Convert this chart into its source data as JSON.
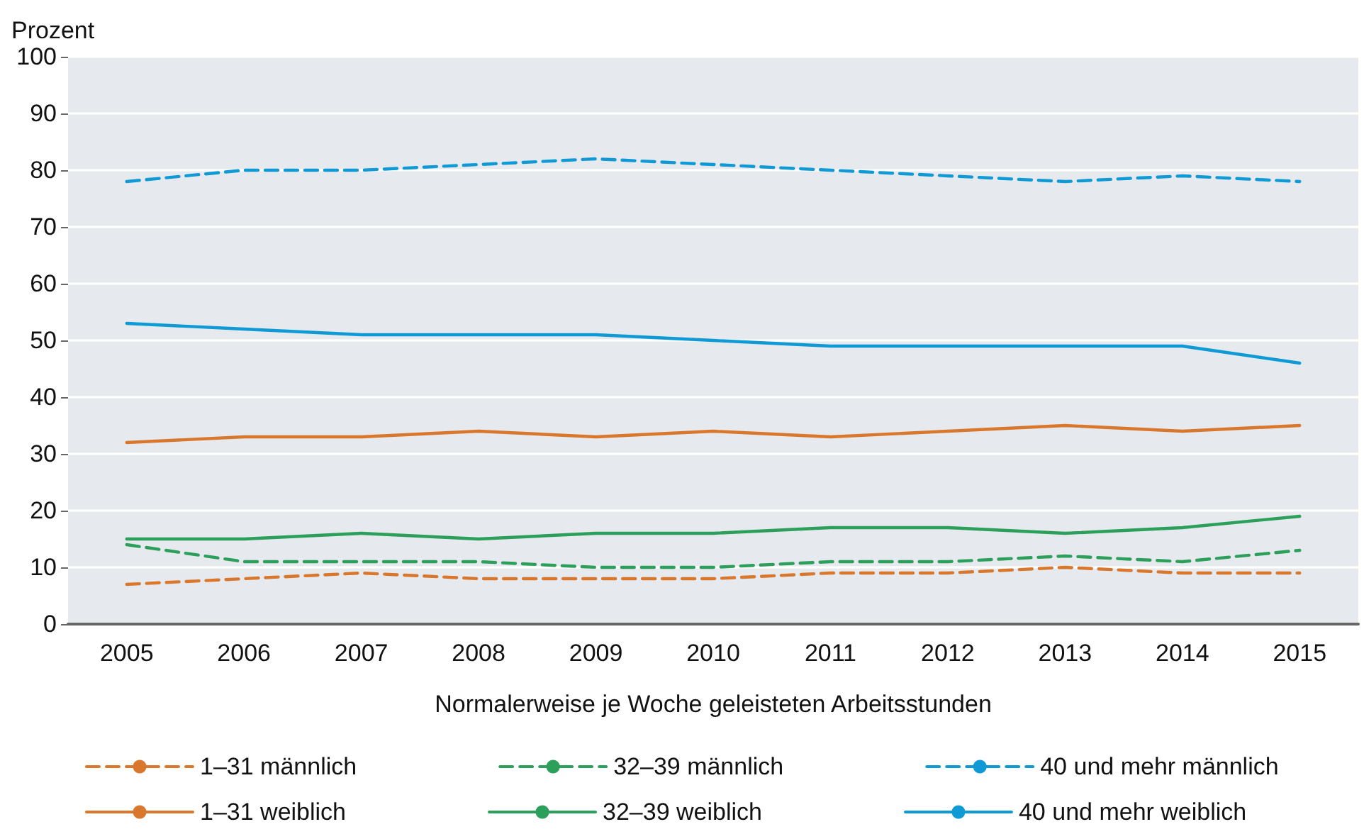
{
  "chart_data": {
    "type": "line",
    "xlabel": "Normalerweise je Woche geleisteten Arbeitsstunden",
    "ylabel": "Prozent",
    "categories": [
      "2005",
      "2006",
      "2007",
      "2008",
      "2009",
      "2010",
      "2011",
      "2012",
      "2013",
      "2014",
      "2015"
    ],
    "ylim": [
      0,
      100
    ],
    "yticks": [
      0,
      10,
      20,
      30,
      40,
      50,
      60,
      70,
      80,
      90,
      100
    ],
    "grid": "y",
    "legend": "bottom",
    "marker": "none",
    "series": [
      {
        "name": "1–31 männlich",
        "color": "#d9782d",
        "line_style": "dashed",
        "values": [
          7,
          8,
          9,
          8,
          8,
          8,
          9,
          9,
          10,
          9,
          9
        ]
      },
      {
        "name": "32–39 männlich",
        "color": "#2ca05a",
        "line_style": "dashed",
        "values": [
          14,
          11,
          11,
          11,
          10,
          10,
          11,
          11,
          12,
          11,
          13
        ]
      },
      {
        "name": "40 und mehr männlich",
        "color": "#0f9ad6",
        "line_style": "dashed",
        "values": [
          78,
          80,
          80,
          81,
          82,
          81,
          80,
          79,
          78,
          79,
          78
        ]
      },
      {
        "name": "1–31 weiblich",
        "color": "#d9782d",
        "line_style": "solid",
        "values": [
          32,
          33,
          33,
          34,
          33,
          34,
          33,
          34,
          35,
          34,
          35
        ]
      },
      {
        "name": "32–39 weiblich",
        "color": "#2ca05a",
        "line_style": "solid",
        "values": [
          15,
          15,
          16,
          15,
          16,
          16,
          17,
          17,
          16,
          17,
          19
        ]
      },
      {
        "name": "40 und mehr weiblich",
        "color": "#0f9ad6",
        "line_style": "solid",
        "values": [
          53,
          52,
          51,
          51,
          51,
          50,
          49,
          49,
          49,
          49,
          46
        ]
      }
    ]
  }
}
